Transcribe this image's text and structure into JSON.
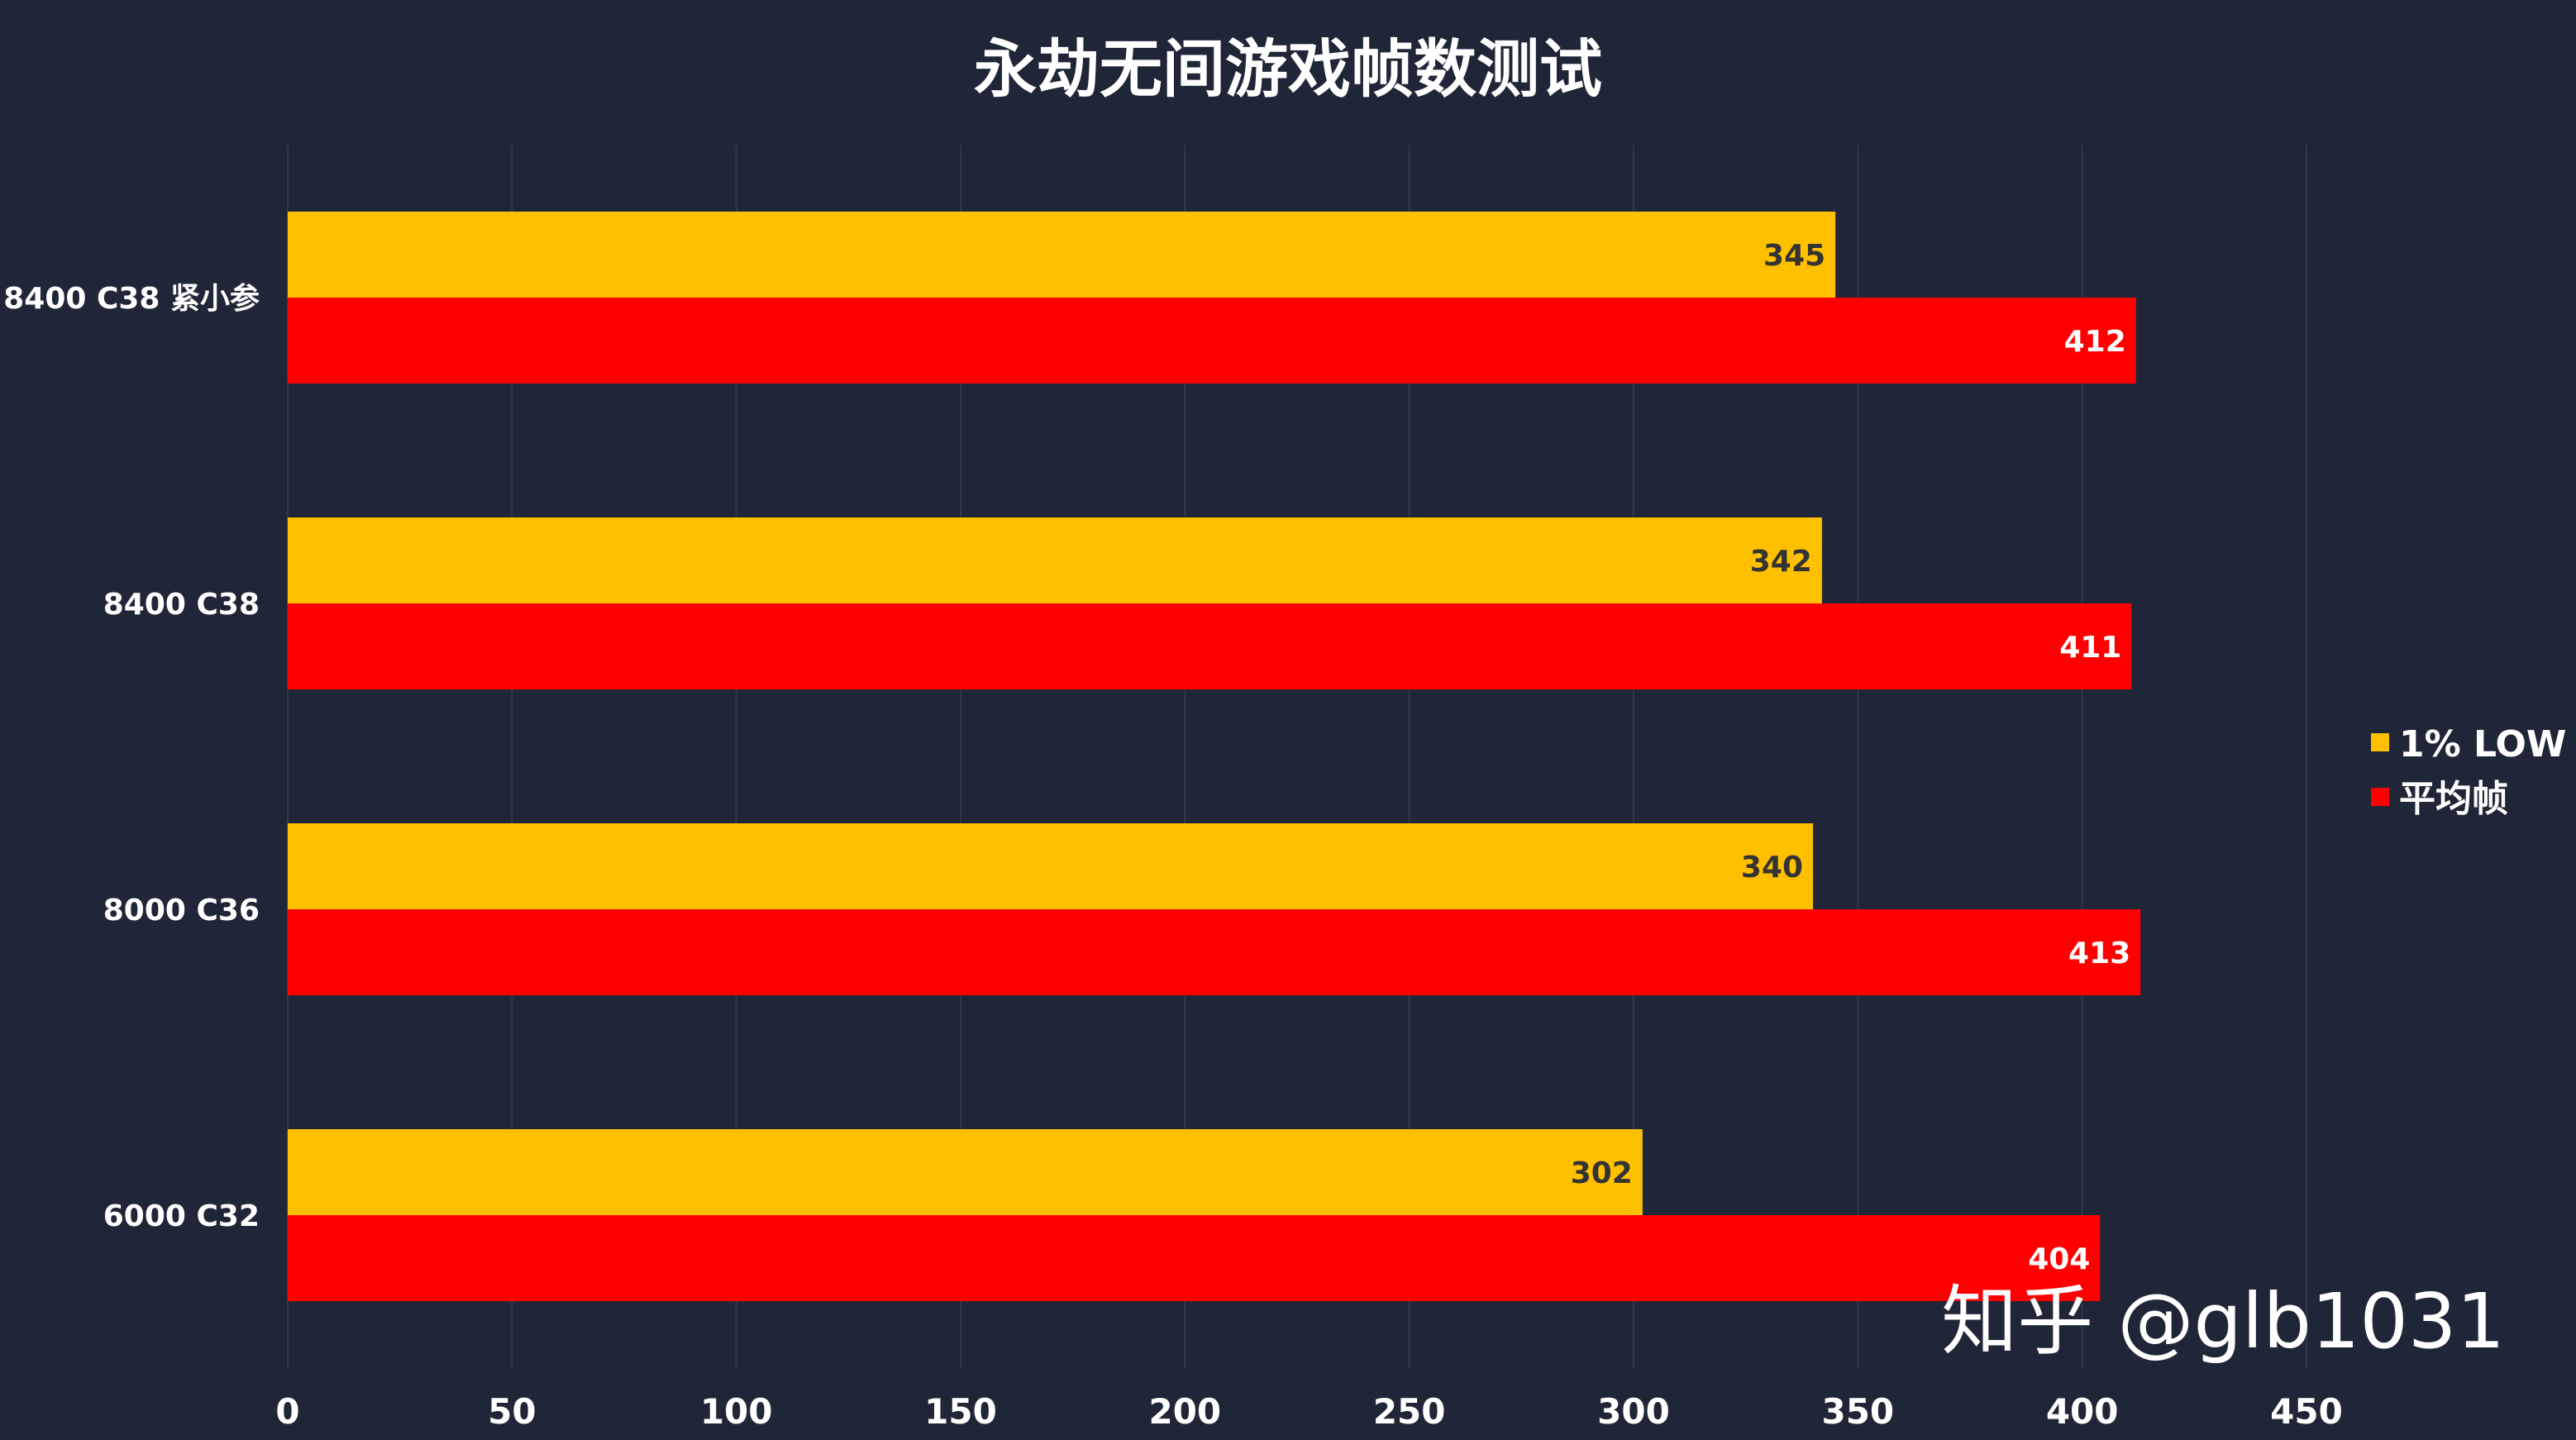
{
  "chart_data": {
    "type": "bar",
    "orientation": "horizontal",
    "title": "永劫无间游戏帧数测试",
    "categories": [
      "8400 C38 紧小参",
      "8400 C38",
      "8000 C36",
      "6000 C32"
    ],
    "series": [
      {
        "name": "1% LOW",
        "color": "#ffc000",
        "label_color": "#333333",
        "values": [
          345,
          342,
          340,
          302
        ]
      },
      {
        "name": "平均帧",
        "color": "#ff0000",
        "label_color": "#ffffff",
        "values": [
          412,
          411,
          413,
          404
        ]
      }
    ],
    "xlim": [
      0,
      450
    ],
    "xticks": [
      0,
      50,
      100,
      150,
      200,
      250,
      300,
      350,
      400,
      450
    ],
    "grid": "vertical",
    "legend_position": "right",
    "xlabel": "",
    "ylabel": ""
  },
  "watermark": "知乎 @glb1031"
}
